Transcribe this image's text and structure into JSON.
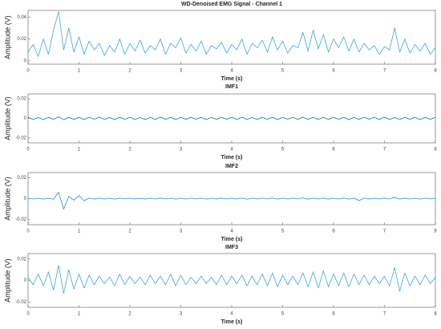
{
  "chart_data": [
    {
      "type": "line",
      "title": "WD-Denoised EMG Signal - Channel 1",
      "xlabel": "Time (s)",
      "ylabel": "Amplitude (V)",
      "color": "#3aa6dd",
      "x": [
        0,
        0.1,
        0.2,
        0.3,
        0.4,
        0.5,
        0.6,
        0.7,
        0.8,
        0.9,
        1,
        1.1,
        1.2,
        1.3,
        1.4,
        1.5,
        1.6,
        1.7,
        1.8,
        1.9,
        2,
        2.1,
        2.2,
        2.3,
        2.4,
        2.5,
        2.6,
        2.7,
        2.8,
        2.9,
        3,
        3.1,
        3.2,
        3.3,
        3.4,
        3.5,
        3.6,
        3.7,
        3.8,
        3.9,
        4,
        4.1,
        4.2,
        4.3,
        4.4,
        4.5,
        4.6,
        4.7,
        4.8,
        4.9,
        5,
        5.1,
        5.2,
        5.3,
        5.4,
        5.5,
        5.6,
        5.7,
        5.8,
        5.9,
        6,
        6.1,
        6.2,
        6.3,
        6.4,
        6.5,
        6.6,
        6.7,
        6.8,
        6.9,
        7,
        7.1,
        7.2,
        7.3,
        7.4,
        7.5,
        7.6,
        7.7,
        7.8,
        7.9,
        8
      ],
      "values": [
        0.008,
        0.015,
        0.004,
        0.02,
        0.006,
        0.028,
        0.045,
        0.01,
        0.03,
        0.008,
        0.022,
        0.006,
        0.018,
        0.01,
        0.016,
        0.005,
        0.014,
        0.008,
        0.02,
        0.006,
        0.016,
        0.009,
        0.019,
        0.007,
        0.014,
        0.01,
        0.02,
        0.006,
        0.016,
        0.012,
        0.021,
        0.007,
        0.015,
        0.009,
        0.018,
        0.006,
        0.014,
        0.011,
        0.017,
        0.007,
        0.015,
        0.01,
        0.02,
        0.006,
        0.016,
        0.012,
        0.019,
        0.008,
        0.022,
        0.01,
        0.018,
        0.007,
        0.014,
        0.012,
        0.026,
        0.009,
        0.028,
        0.011,
        0.024,
        0.008,
        0.02,
        0.012,
        0.022,
        0.009,
        0.02,
        0.008,
        0.016,
        0.01,
        0.014,
        0.006,
        0.013,
        0.01,
        0.03,
        0.008,
        0.02,
        0.007,
        0.015,
        0.009,
        0.016,
        0.006,
        0.012
      ],
      "xlim": [
        0,
        8
      ],
      "xticks": [
        0,
        1,
        2,
        3,
        4,
        5,
        6,
        7,
        8
      ],
      "ylim": [
        -0.003,
        0.046
      ],
      "yticks": [
        0,
        0.02,
        0.04
      ]
    },
    {
      "type": "line",
      "title": "IMF1",
      "xlabel": "Time (s)",
      "ylabel": "Amplitude (V)",
      "color": "#0072bd",
      "x": [
        0,
        0.1,
        0.2,
        0.3,
        0.4,
        0.5,
        0.6,
        0.7,
        0.8,
        0.9,
        1,
        1.1,
        1.2,
        1.3,
        1.4,
        1.5,
        1.6,
        1.7,
        1.8,
        1.9,
        2,
        2.1,
        2.2,
        2.3,
        2.4,
        2.5,
        2.6,
        2.7,
        2.8,
        2.9,
        3,
        3.1,
        3.2,
        3.3,
        3.4,
        3.5,
        3.6,
        3.7,
        3.8,
        3.9,
        4,
        4.1,
        4.2,
        4.3,
        4.4,
        4.5,
        4.6,
        4.7,
        4.8,
        4.9,
        5,
        5.1,
        5.2,
        5.3,
        5.4,
        5.5,
        5.6,
        5.7,
        5.8,
        5.9,
        6,
        6.1,
        6.2,
        6.3,
        6.4,
        6.5,
        6.6,
        6.7,
        6.8,
        6.9,
        7,
        7.1,
        7.2,
        7.3,
        7.4,
        7.5,
        7.6,
        7.7,
        7.8,
        7.9,
        8
      ],
      "values": [
        0.001,
        -0.001,
        0.0008,
        -0.0012,
        0.001,
        -0.0009,
        0.0015,
        -0.0014,
        0.001,
        -0.001,
        0.0009,
        -0.0011,
        0.001,
        -0.0008,
        0.0012,
        -0.001,
        0.0009,
        -0.0012,
        0.001,
        -0.0009,
        0.0011,
        -0.001,
        0.0008,
        -0.0012,
        0.001,
        -0.001,
        0.0012,
        -0.0009,
        0.001,
        -0.0011,
        0.0009,
        -0.001,
        0.0011,
        -0.0008,
        0.001,
        -0.0012,
        0.0009,
        -0.001,
        0.0011,
        -0.0009,
        0.001,
        -0.001,
        0.0012,
        -0.0011,
        0.0009,
        -0.001,
        0.0011,
        -0.0009,
        0.001,
        -0.0012,
        0.001,
        -0.0008,
        0.0011,
        -0.001,
        0.0012,
        -0.001,
        0.0009,
        -0.0011,
        0.001,
        -0.001,
        0.0011,
        -0.0009,
        0.001,
        -0.0012,
        0.0009,
        -0.001,
        0.0011,
        -0.0008,
        0.001,
        -0.001,
        0.0012,
        -0.0011,
        0.0009,
        -0.001,
        0.0011,
        -0.0009,
        0.001,
        -0.0012,
        0.001,
        -0.0009,
        0.001
      ],
      "xlim": [
        0,
        8
      ],
      "xticks": [
        0,
        1,
        2,
        3,
        4,
        5,
        6,
        7,
        8
      ],
      "ylim": [
        -0.025,
        0.025
      ],
      "yticks": [
        -0.02,
        0,
        0.02
      ]
    },
    {
      "type": "line",
      "title": "IMF2",
      "xlabel": "Time (s)",
      "ylabel": "Amplitude (V)",
      "color": "#1f8fd0",
      "x": [
        0,
        0.1,
        0.2,
        0.3,
        0.4,
        0.5,
        0.6,
        0.7,
        0.8,
        0.9,
        1,
        1.1,
        1.2,
        1.3,
        1.4,
        1.5,
        1.6,
        1.7,
        1.8,
        1.9,
        2,
        2.1,
        2.2,
        2.3,
        2.4,
        2.5,
        2.6,
        2.7,
        2.8,
        2.9,
        3,
        3.1,
        3.2,
        3.3,
        3.4,
        3.5,
        3.6,
        3.7,
        3.8,
        3.9,
        4,
        4.1,
        4.2,
        4.3,
        4.4,
        4.5,
        4.6,
        4.7,
        4.8,
        4.9,
        5,
        5.1,
        5.2,
        5.3,
        5.4,
        5.5,
        5.6,
        5.7,
        5.8,
        5.9,
        6,
        6.1,
        6.2,
        6.3,
        6.4,
        6.5,
        6.6,
        6.7,
        6.8,
        6.9,
        7,
        7.1,
        7.2,
        7.3,
        7.4,
        7.5,
        7.6,
        7.7,
        7.8,
        7.9,
        8
      ],
      "values": [
        0.0003,
        -0.0004,
        0.0003,
        -0.0005,
        0.0004,
        -0.0006,
        0.006,
        -0.01,
        0.002,
        -0.0015,
        0.003,
        -0.002,
        0.0006,
        -0.0005,
        0.0004,
        -0.0004,
        0.0003,
        -0.0005,
        0.0004,
        -0.0003,
        0.0005,
        -0.0004,
        0.0003,
        -0.0005,
        0.0004,
        -0.0004,
        0.0006,
        -0.0003,
        0.0004,
        -0.0005,
        0.0003,
        -0.0004,
        0.0005,
        -0.0003,
        0.0004,
        -0.0005,
        0.0003,
        -0.0004,
        0.0005,
        -0.0003,
        0.0004,
        -0.0004,
        0.0005,
        -0.0006,
        0.0004,
        -0.0004,
        0.0005,
        -0.0003,
        0.0006,
        -0.0005,
        0.0004,
        -0.0004,
        0.0005,
        -0.0003,
        0.0007,
        -0.0006,
        0.0005,
        -0.0004,
        0.0006,
        -0.0005,
        0.0004,
        -0.0004,
        0.0006,
        -0.0005,
        0.0004,
        -0.0018,
        0.0005,
        -0.0004,
        0.0004,
        -0.0003,
        0.0005,
        -0.0004,
        0.0012,
        -0.0005,
        0.0004,
        -0.0004,
        0.0003,
        -0.0005,
        0.0004,
        -0.0003,
        0.0004
      ],
      "xlim": [
        0,
        8
      ],
      "xticks": [
        0,
        1,
        2,
        3,
        4,
        5,
        6,
        7,
        8
      ],
      "ylim": [
        -0.025,
        0.025
      ],
      "yticks": [
        -0.02,
        0,
        0.02
      ]
    },
    {
      "type": "line",
      "title": "IMF3",
      "xlabel": "Time (s)",
      "ylabel": "Amplitude (V)",
      "color": "#3aa6dd",
      "x": [
        0,
        0.1,
        0.2,
        0.3,
        0.4,
        0.5,
        0.6,
        0.7,
        0.8,
        0.9,
        1,
        1.1,
        1.2,
        1.3,
        1.4,
        1.5,
        1.6,
        1.7,
        1.8,
        1.9,
        2,
        2.1,
        2.2,
        2.3,
        2.4,
        2.5,
        2.6,
        2.7,
        2.8,
        2.9,
        3,
        3.1,
        3.2,
        3.3,
        3.4,
        3.5,
        3.6,
        3.7,
        3.8,
        3.9,
        4,
        4.1,
        4.2,
        4.3,
        4.4,
        4.5,
        4.6,
        4.7,
        4.8,
        4.9,
        5,
        5.1,
        5.2,
        5.3,
        5.4,
        5.5,
        5.6,
        5.7,
        5.8,
        5.9,
        6,
        6.1,
        6.2,
        6.3,
        6.4,
        6.5,
        6.6,
        6.7,
        6.8,
        6.9,
        7,
        7.1,
        7.2,
        7.3,
        7.4,
        7.5,
        7.6,
        7.7,
        7.8,
        7.9,
        8
      ],
      "values": [
        0.003,
        -0.004,
        0.006,
        -0.005,
        0.008,
        -0.009,
        0.014,
        -0.012,
        0.01,
        -0.008,
        0.006,
        -0.007,
        0.005,
        -0.004,
        0.004,
        -0.003,
        0.003,
        -0.005,
        0.006,
        -0.004,
        0.004,
        -0.003,
        0.003,
        -0.004,
        0.005,
        -0.003,
        0.004,
        -0.004,
        0.006,
        -0.005,
        0.005,
        -0.004,
        0.003,
        -0.003,
        0.004,
        -0.003,
        0.003,
        -0.004,
        0.005,
        -0.004,
        0.004,
        -0.003,
        0.005,
        -0.005,
        0.004,
        -0.004,
        0.006,
        -0.005,
        0.007,
        -0.006,
        0.005,
        -0.004,
        0.004,
        -0.004,
        0.007,
        -0.006,
        0.008,
        -0.007,
        0.009,
        -0.006,
        0.006,
        -0.005,
        0.007,
        -0.006,
        0.006,
        -0.004,
        0.005,
        -0.004,
        0.004,
        -0.003,
        0.004,
        -0.005,
        0.012,
        -0.01,
        0.007,
        -0.005,
        0.004,
        -0.004,
        0.005,
        -0.003,
        0.003
      ],
      "xlim": [
        0,
        8
      ],
      "xticks": [
        0,
        1,
        2,
        3,
        4,
        5,
        6,
        7,
        8
      ],
      "ylim": [
        -0.025,
        0.025
      ],
      "yticks": [
        -0.02,
        0,
        0.02
      ]
    }
  ]
}
